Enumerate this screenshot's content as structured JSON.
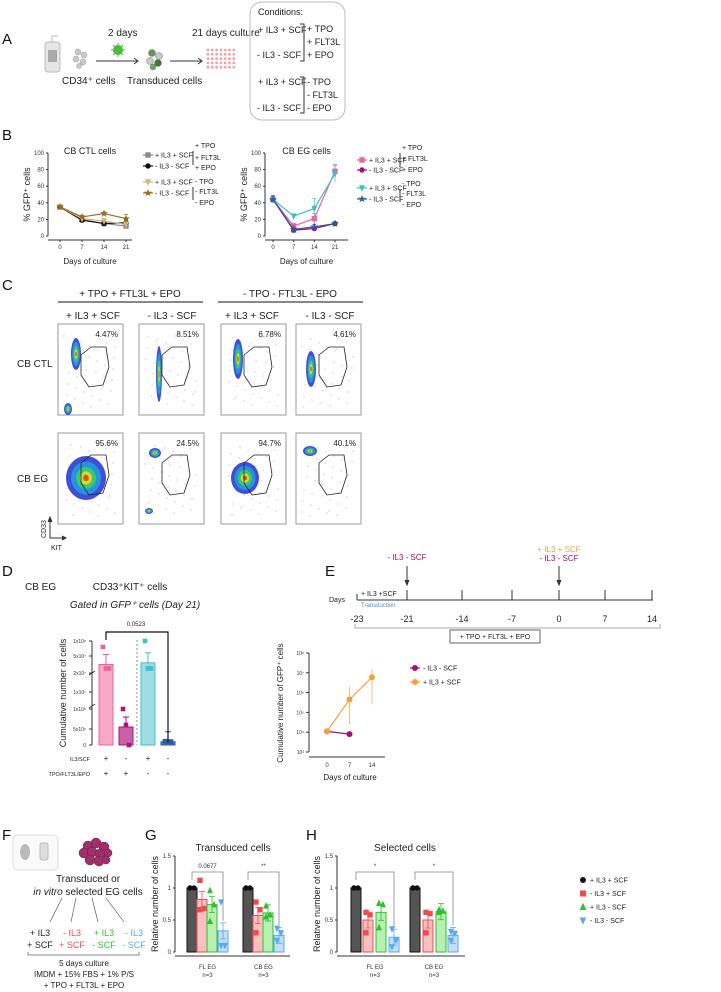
{
  "panel_labels": {
    "A": "A",
    "B": "B",
    "C": "C",
    "D": "D",
    "E": "E",
    "F": "F",
    "G": "G",
    "H": "H"
  },
  "panel_a": {
    "cd34": "CD34⁺ cells",
    "two_days": "2 days",
    "transduced": "Transduced cells",
    "culture": "21 days culture",
    "conditions_title": "Conditions:",
    "conditions": [
      "+ IL3 + SCF",
      "- IL3 - SCF",
      "+ IL3 + SCF",
      "- IL3 - SCF"
    ],
    "plus_factors": [
      "+ TPO",
      "+ FLT3L",
      "+ EPO"
    ],
    "minus_factors": [
      "- TPO",
      "- FLT3L",
      "- EPO"
    ]
  },
  "panel_c": {
    "group_headers": [
      "+ TPO + FTL3L + EPO",
      "- TPO - FTL3L - EPO"
    ],
    "column_headers": [
      "+ IL3 + SCF",
      "- IL3 - SCF",
      "+ IL3 + SCF",
      "- IL3 - SCF"
    ],
    "row_labels": [
      "CB CTL",
      "CB EG"
    ],
    "percents_ctl": [
      "4.47%",
      "8.51%",
      "6.78%",
      "4.61%"
    ],
    "percents_eg": [
      "95.6%",
      "24.5%",
      "94.7%",
      "40.1%"
    ],
    "y_axis": "CD33",
    "x_axis": "KIT"
  },
  "panel_d": {
    "cell_type": "CB EG"
  },
  "panel_e_timeline": {
    "days_label": "Days",
    "ticks": [
      "-23",
      "-21",
      "-14",
      "-7",
      "0",
      "7",
      "14"
    ],
    "initial": "+ IL3 +SCF",
    "transduction": "Transduction",
    "event1": "-  IL3  - SCF",
    "event2_top": "+  IL3 + SCF",
    "event2_bottom": "-  IL3  -  SCF",
    "span_label": "+ TPO + FLT3L + EPO"
  },
  "panel_f": {
    "line1": "Transduced or",
    "line2_italic": "in vitro",
    "line2_rest": " selected EG cells",
    "conditions": [
      {
        "top": "+ IL3",
        "bottom": "+ SCF",
        "color": "#222222"
      },
      {
        "top": "- IL3",
        "bottom": "+ SCF",
        "color": "#f04a50"
      },
      {
        "top": "+ IL3",
        "bottom": "- SCF",
        "color": "#2fbf2f"
      },
      {
        "top": "- IL3",
        "bottom": "- SCF",
        "color": "#5aa8f0"
      }
    ],
    "culture": "5 days culture",
    "medium": "IMDM + 15% FBS + 1% P/S",
    "factors": "+ TPO + FLT3L + EPO"
  },
  "chart_data": [
    {
      "id": "b_ctl",
      "type": "line",
      "title": "CB CTL cells",
      "xlabel": "Days of culture",
      "ylabel": "% GFP⁺ cells",
      "x": [
        0,
        7,
        14,
        21
      ],
      "xticks": [
        "0",
        "7",
        "14",
        "21"
      ],
      "ylim": [
        0,
        100
      ],
      "yticks": [
        "0",
        "20",
        "40",
        "60",
        "80",
        "100"
      ],
      "legend_groups": [
        [
          "+ TPO",
          "+ FLT3L",
          "+ EPO"
        ],
        [
          "- TPO",
          "- FLT3L",
          "- EPO"
        ]
      ],
      "series": [
        {
          "name": "+ IL3 + SCF",
          "group": 0,
          "color": "#8a8a8a",
          "marker": "square",
          "values": [
            35,
            20,
            15,
            12
          ],
          "err": [
            2,
            2,
            2,
            3
          ]
        },
        {
          "name": "- IL3 - SCF",
          "group": 0,
          "color": "#111111",
          "marker": "circle",
          "values": [
            35,
            19,
            15,
            16
          ],
          "err": [
            2,
            2,
            2,
            4
          ]
        },
        {
          "name": "+ IL3 + SCF",
          "group": 1,
          "color": "#c9b97a",
          "marker": "triangle-down",
          "values": [
            35,
            21,
            18,
            14
          ],
          "err": [
            2,
            2,
            3,
            4
          ]
        },
        {
          "name": "- IL3 - SCF",
          "group": 1,
          "color": "#9a6a20",
          "marker": "star",
          "values": [
            35,
            23,
            27,
            21
          ],
          "err": [
            2,
            2,
            2,
            5
          ]
        }
      ]
    },
    {
      "id": "b_eg",
      "type": "line",
      "title": "CB EG cells",
      "xlabel": "Days of culture",
      "ylabel": "% GFP⁺ cells",
      "x": [
        0,
        7,
        14,
        21
      ],
      "xticks": [
        "0",
        "7",
        "14",
        "21"
      ],
      "ylim": [
        0,
        100
      ],
      "yticks": [
        "0",
        "20",
        "40",
        "60",
        "80",
        "100"
      ],
      "legend_groups": [
        [
          "+ TPO",
          "+ FLT3L",
          "+ EPO"
        ],
        [
          "- TPO",
          "- FLT3L",
          "- EPO"
        ]
      ],
      "series": [
        {
          "name": "+ IL3 + SCF",
          "group": 0,
          "color": "#f0609a",
          "marker": "square",
          "values": [
            44,
            12,
            21,
            78
          ],
          "err": [
            5,
            3,
            6,
            8
          ]
        },
        {
          "name": "- IL3 - SCF",
          "group": 0,
          "color": "#a0117a",
          "marker": "circle",
          "values": [
            44,
            7,
            9,
            15
          ],
          "err": [
            4,
            2,
            2,
            2
          ]
        },
        {
          "name": "+ IL3 + SCF",
          "group": 1,
          "color": "#3cc0cc",
          "marker": "triangle-down",
          "values": [
            44,
            24,
            33,
            75
          ],
          "err": [
            4,
            2,
            12,
            10
          ]
        },
        {
          "name": "- IL3 - SCF",
          "group": 1,
          "color": "#2a5aa0",
          "marker": "star",
          "values": [
            44,
            8,
            11,
            15
          ],
          "err": [
            4,
            2,
            3,
            2
          ]
        }
      ]
    },
    {
      "id": "d",
      "type": "bar",
      "title": "CD33⁺KIT⁺ cells",
      "subtitle": "Gated in GFP⁺ cells (Day 21)",
      "ylabel": "Cumulative number of cells",
      "yticks": [
        "0",
        "5x10⁶",
        "1x10⁶",
        "1x10⁷",
        "2x10⁷",
        "5x10⁷",
        "1x10⁸"
      ],
      "row_labels": [
        "IL3/SCF",
        "TPO/FLT3L/EPO"
      ],
      "categories": [
        [
          "+",
          "+"
        ],
        [
          "-",
          "+"
        ],
        [
          "+",
          "-"
        ],
        [
          "-",
          "-"
        ]
      ],
      "values": [
        35000000.0,
        550000.0,
        38000000.0,
        100000.0
      ],
      "colors": [
        "#f0609a",
        "#b0107a",
        "#3cc0cc",
        "#2a5aa0"
      ],
      "fills": [
        "#f7a8c6",
        "#c862a8",
        "#9fdde2",
        "#4a7ac0"
      ],
      "points": [
        [
          80000000.0,
          28000000.0,
          28000000.0
        ],
        [
          1000000.0,
          600000.0,
          0
        ],
        [
          100000000.0,
          28000000.0,
          28000000.0
        ],
        [
          120000.0,
          100000.0,
          110000.0
        ]
      ],
      "significance": [
        {
          "from": 0,
          "to": 3,
          "label": "0.0523"
        }
      ]
    },
    {
      "id": "e",
      "type": "line",
      "scale": "log",
      "xlabel": "Days of culture",
      "ylabel": "Cumulative number of GFP⁺ cells",
      "x": [
        0,
        7,
        14
      ],
      "xticks": [
        "0",
        "7",
        "14"
      ],
      "ylim": [
        1000.0,
        100000000.0
      ],
      "yticks": [
        "10³",
        "10⁴",
        "10⁵",
        "10⁶",
        "10⁷",
        "10⁸"
      ],
      "series": [
        {
          "name": "- IL3 - SCF",
          "color": "#a0117a",
          "marker": "circle",
          "x": [
            0,
            7
          ],
          "values": [
            11000.0,
            8000.0
          ]
        },
        {
          "name": "+ IL3 + SCF",
          "color": "#f5a040",
          "marker": "circle",
          "x": [
            0,
            7,
            14
          ],
          "values": [
            11000.0,
            450000.0,
            6000000.0
          ]
        }
      ]
    },
    {
      "id": "g",
      "type": "bar",
      "title": "Transduced cells",
      "ylabel": "Relative number of cells",
      "ylim": [
        0,
        1.5
      ],
      "yticks": [
        "0",
        "0.5",
        "1",
        "1.5"
      ],
      "categories": [
        "FL EG",
        "CB EG"
      ],
      "n_labels": [
        "n=3",
        "n=3"
      ],
      "series": [
        {
          "name": "+ IL3 + SCF",
          "color": "#111111",
          "fill": "#555555",
          "marker": "circle",
          "values": [
            1,
            1
          ],
          "points": [
            [
              1,
              1,
              1
            ],
            [
              1,
              1,
              1
            ]
          ]
        },
        {
          "name": "- IL3 + SCF",
          "color": "#f04a50",
          "fill": "#f9c0c0",
          "marker": "square",
          "values": [
            0.82,
            0.57
          ],
          "points": [
            [
              1.12,
              0.68,
              0.66
            ],
            [
              0.78,
              0.66,
              0.3
            ]
          ]
        },
        {
          "name": "+ IL3 - SCF",
          "color": "#2fbf2f",
          "fill": "#b7f0b0",
          "marker": "triangle",
          "values": [
            0.74,
            0.61
          ],
          "points": [
            [
              0.96,
              0.74,
              0.48
            ],
            [
              0.72,
              0.58,
              0.55
            ]
          ]
        },
        {
          "name": "- IL3 - SCF",
          "color": "#5aa8f0",
          "fill": "#c5def8",
          "marker": "triangle-down",
          "values": [
            0.33,
            0.26
          ],
          "points": [
            [
              0.78,
              0.1,
              0.1
            ],
            [
              0.37,
              0.3,
              0.18
            ]
          ]
        }
      ],
      "significance": [
        {
          "group": 0,
          "label": "0.0677"
        },
        {
          "group": 1,
          "label": "**"
        }
      ]
    },
    {
      "id": "h",
      "type": "bar",
      "title": "Selected cells",
      "ylabel": "Relative number of cells",
      "ylim": [
        0,
        1.5
      ],
      "yticks": [
        "0",
        "0.5",
        "1",
        "1.5"
      ],
      "categories": [
        "FL EG",
        "CB EG"
      ],
      "n_labels": [
        "n=3",
        "n=3"
      ],
      "series": [
        {
          "name": "+ IL3 + SCF",
          "color": "#111111",
          "fill": "#555555",
          "marker": "circle",
          "values": [
            1,
            1
          ],
          "points": [
            [
              1,
              1,
              1
            ],
            [
              1,
              1,
              1
            ]
          ]
        },
        {
          "name": "- IL3 + SCF",
          "color": "#f04a50",
          "fill": "#f9c0c0",
          "marker": "square",
          "values": [
            0.5,
            0.5
          ],
          "points": [
            [
              0.62,
              0.58,
              0.3
            ],
            [
              0.62,
              0.6,
              0.3
            ]
          ]
        },
        {
          "name": "+ IL3 - SCF",
          "color": "#2fbf2f",
          "fill": "#b7f0b0",
          "marker": "triangle",
          "values": [
            0.62,
            0.63
          ],
          "points": [
            [
              0.76,
              0.74,
              0.38
            ],
            [
              0.66,
              0.64,
              0.62
            ]
          ]
        },
        {
          "name": "- IL3 - SCF",
          "color": "#5aa8f0",
          "fill": "#c5def8",
          "marker": "triangle-down",
          "values": [
            0.23,
            0.26
          ],
          "points": [
            [
              0.36,
              0.18,
              0.08
            ],
            [
              0.32,
              0.29,
              0.18
            ]
          ]
        }
      ],
      "significance": [
        {
          "group": 0,
          "label": "*"
        },
        {
          "group": 1,
          "label": "*"
        }
      ]
    }
  ]
}
